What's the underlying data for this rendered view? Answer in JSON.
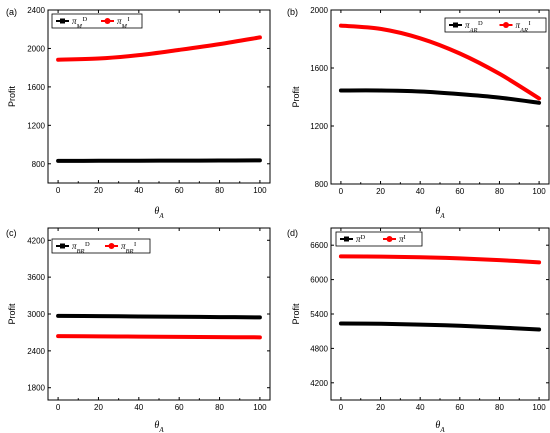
{
  "chart_data": [
    {
      "type": "line",
      "panel_label": "(a)",
      "xlabel": {
        "main": "θ",
        "sub": "A"
      },
      "ylabel": "Profit",
      "xlim": [
        -5,
        105
      ],
      "ylim": [
        600,
        2400
      ],
      "xticks": [
        "0",
        "20",
        "40",
        "60",
        "80",
        "100"
      ],
      "yticks": [
        "800",
        "1200",
        "1600",
        "2000",
        "2400"
      ],
      "legend_position": "top-left",
      "series": [
        {
          "name": {
            "main": "π",
            "sub": "M",
            "sup": "D"
          },
          "color": "#000000",
          "x": [
            0,
            20,
            40,
            60,
            80,
            100
          ],
          "y": [
            830,
            831,
            832,
            833,
            834,
            836
          ]
        },
        {
          "name": {
            "main": "π",
            "sub": "M",
            "sup": "I"
          },
          "color": "#ff0000",
          "x": [
            0,
            20,
            40,
            60,
            80,
            100
          ],
          "y": [
            1883,
            1895,
            1930,
            1985,
            2045,
            2115
          ]
        }
      ]
    },
    {
      "type": "line",
      "panel_label": "(b)",
      "xlabel": {
        "main": "θ",
        "sub": "A"
      },
      "ylabel": "Profit",
      "xlim": [
        -5,
        105
      ],
      "ylim": [
        800,
        2000
      ],
      "xticks": [
        "0",
        "20",
        "40",
        "60",
        "80",
        "100"
      ],
      "yticks": [
        "800",
        "1200",
        "1600",
        "2000"
      ],
      "legend_position": "top-right",
      "series": [
        {
          "name": {
            "main": "π",
            "sub": "AR",
            "sup": "D"
          },
          "color": "#000000",
          "x": [
            0,
            20,
            40,
            60,
            80,
            100
          ],
          "y": [
            1445,
            1445,
            1438,
            1420,
            1396,
            1360
          ]
        },
        {
          "name": {
            "main": "π",
            "sub": "AR",
            "sup": "I"
          },
          "color": "#ff0000",
          "x": [
            0,
            20,
            40,
            60,
            80,
            100
          ],
          "y": [
            1892,
            1870,
            1805,
            1700,
            1560,
            1390
          ]
        }
      ]
    },
    {
      "type": "line",
      "panel_label": "(c)",
      "xlabel": {
        "main": "θ",
        "sub": "A"
      },
      "ylabel": "Profit",
      "xlim": [
        -5,
        105
      ],
      "ylim": [
        1600,
        4400
      ],
      "xticks": [
        "0",
        "20",
        "40",
        "60",
        "80",
        "100"
      ],
      "yticks": [
        "1800",
        "2400",
        "3000",
        "3600",
        "4200"
      ],
      "legend_position": "top-left",
      "series": [
        {
          "name": {
            "main": "π",
            "sub": "BR",
            "sup": "D"
          },
          "color": "#000000",
          "x": [
            0,
            20,
            40,
            60,
            80,
            100
          ],
          "y": [
            2970,
            2965,
            2960,
            2955,
            2950,
            2945
          ]
        },
        {
          "name": {
            "main": "π",
            "sub": "BR",
            "sup": "I"
          },
          "color": "#ff0000",
          "x": [
            0,
            20,
            40,
            60,
            80,
            100
          ],
          "y": [
            2640,
            2636,
            2632,
            2628,
            2624,
            2620
          ]
        }
      ]
    },
    {
      "type": "line",
      "panel_label": "(d)",
      "xlabel": {
        "main": "θ",
        "sub": "A"
      },
      "ylabel": "Profit",
      "xlim": [
        -5,
        105
      ],
      "ylim": [
        3900,
        6900
      ],
      "xticks": [
        "0",
        "20",
        "40",
        "60",
        "80",
        "100"
      ],
      "yticks": [
        "4200",
        "4800",
        "5400",
        "6000",
        "6600"
      ],
      "legend_position": "top-left",
      "series": [
        {
          "name": {
            "main": "π",
            "sub": "",
            "sup": "D"
          },
          "color": "#000000",
          "x": [
            0,
            20,
            40,
            60,
            80,
            100
          ],
          "y": [
            5235,
            5230,
            5215,
            5195,
            5165,
            5130
          ]
        },
        {
          "name": {
            "main": "π",
            "sub": "",
            "sup": "I"
          },
          "color": "#ff0000",
          "x": [
            0,
            20,
            40,
            60,
            80,
            100
          ],
          "y": [
            6405,
            6400,
            6390,
            6370,
            6340,
            6300
          ]
        }
      ]
    }
  ]
}
